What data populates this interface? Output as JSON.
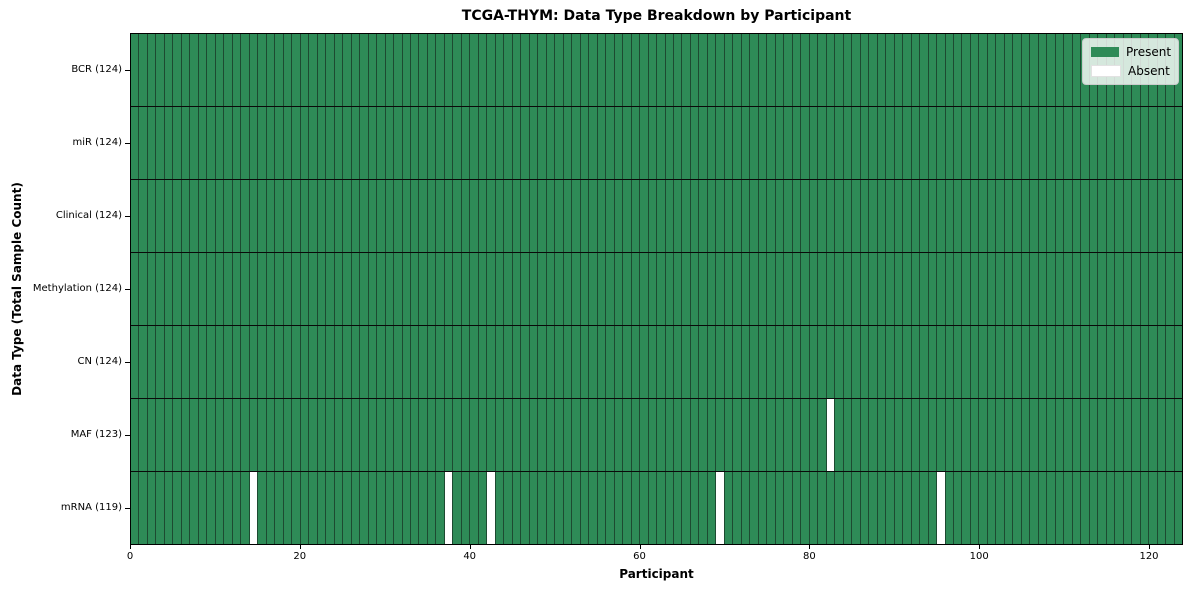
{
  "colors": {
    "present": "#2e8b57",
    "absent": "#ffffff",
    "gridline": "#1d4a31",
    "row_separator": "#0a0a0a",
    "spine": "#000000",
    "legend_border": "#cccccc"
  },
  "chart_data": {
    "type": "heatmap",
    "title": "TCGA-THYM: Data Type Breakdown by Participant",
    "xlabel": "Participant",
    "ylabel": "Data Type (Total Sample Count)",
    "x_range": [
      0,
      124
    ],
    "n_participants": 124,
    "x_ticks": [
      0,
      20,
      40,
      60,
      80,
      100,
      120
    ],
    "grid": "cell-edges",
    "legend_position": "upper right",
    "legend": [
      "Present",
      "Absent"
    ],
    "rows": [
      {
        "label": "BCR (124)",
        "data_type": "BCR",
        "total": 124,
        "absent_participants": []
      },
      {
        "label": "miR (124)",
        "data_type": "miR",
        "total": 124,
        "absent_participants": []
      },
      {
        "label": "Clinical (124)",
        "data_type": "Clinical",
        "total": 124,
        "absent_participants": []
      },
      {
        "label": "Methylation (124)",
        "data_type": "Methylation",
        "total": 124,
        "absent_participants": []
      },
      {
        "label": "CN (124)",
        "data_type": "CN",
        "total": 124,
        "absent_participants": []
      },
      {
        "label": "MAF (123)",
        "data_type": "MAF",
        "total": 123,
        "absent_participants": [
          82
        ]
      },
      {
        "label": "mRNA (119)",
        "data_type": "mRNA",
        "total": 119,
        "absent_participants": [
          14,
          37,
          42,
          69,
          95
        ]
      }
    ]
  }
}
